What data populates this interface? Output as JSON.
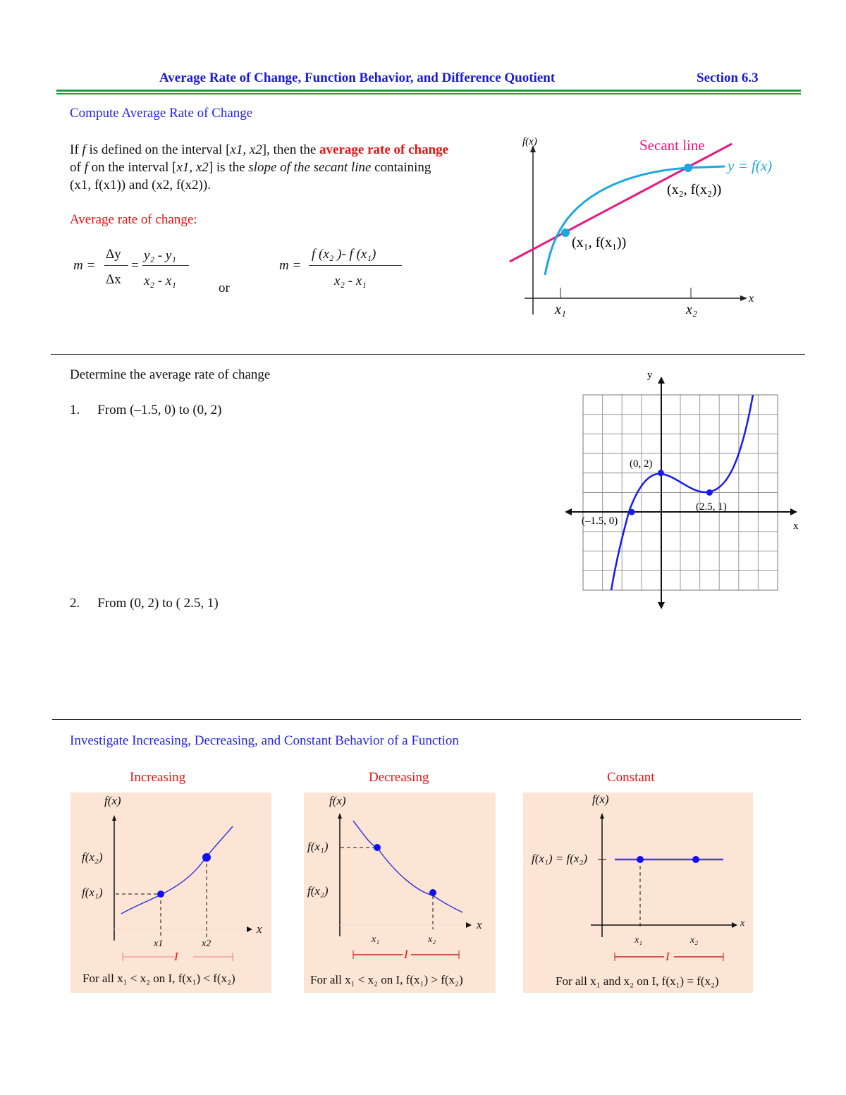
{
  "header": {
    "title": "Average Rate of Change, Function Behavior, and Difference Quotient",
    "section": "Section 6.3"
  },
  "compute": {
    "heading": "Compute Average Rate of Change",
    "para": {
      "p1": "If ",
      "f": "f",
      "p2": " is defined on the interval [",
      "x1": "x1",
      "c": ", ",
      "x2": "x2",
      "p3": "], then the ",
      "highlight": "average rate of change",
      "p4": "of ",
      "p5": " on the interval [",
      "p6": "] is the ",
      "slope": "slope of the secant line",
      "p7": " containing",
      "line3": "(x1, f(x1)) and (x2, f(x2))."
    },
    "formula_label": "Average rate of change:",
    "formula1": {
      "m": "m =",
      "dy": "Δy",
      "dx": "Δx",
      "eq": "=",
      "num": "y₂ - y₁",
      "den": "x₂ - x₁"
    },
    "or": "or",
    "formula2": {
      "m": "m =",
      "num": "f (x₂ )- f (x₁)",
      "den": "x₂ - x₁"
    },
    "diagram": {
      "y_label": "f(x)",
      "x_label": "x",
      "secant_label": "Secant line",
      "curve_label": "y = f(x)",
      "p1_label": "(x₁, f(x₁))",
      "p2_label": "(x₂, f(x₂))",
      "tick1": "x₁",
      "tick2": "x₂",
      "secant_color": "#e5197e",
      "curve_color": "#1ba8e0"
    }
  },
  "determine": {
    "intro": "Determine the average rate of change",
    "problems": [
      {
        "num": "1.",
        "text": "From (–1.5, 0) to (0, 2)"
      },
      {
        "num": "2.",
        "text": "From (0, 2) to ( 2.5, 1)"
      }
    ],
    "graph": {
      "x_label": "x",
      "y_label": "y",
      "x_range": [
        -4,
        6
      ],
      "y_range": [
        -4,
        6
      ],
      "grid": true,
      "curve_color": "#1a1af0",
      "points": [
        {
          "label": "(–1.5, 0)",
          "x": -1.5,
          "y": 0
        },
        {
          "label": "(0, 2)",
          "x": 0,
          "y": 2
        },
        {
          "label": "(2.5, 1)",
          "x": 2.5,
          "y": 1
        }
      ]
    }
  },
  "behavior": {
    "heading": "Investigate Increasing, Decreasing, and Constant Behavior of a Function",
    "panels": [
      {
        "title": "Increasing",
        "y_axis": "f(x)",
        "fx2": "f(x₂)",
        "fx1": "f(x₁)",
        "x": "x",
        "x1": "x1",
        "x2": "x2",
        "I": "I",
        "caption": "For all x₁ < x₂ on I, f(x₁) < f(x₂)"
      },
      {
        "title": "Decreasing",
        "y_axis": "f(x)",
        "fx1": "f(x₁)",
        "fx2": "f(x₂)",
        "x": "x",
        "x1": "x₁",
        "x2": "x₂",
        "I": "I",
        "caption": "For all x₁ < x₂ on I, f(x₁) > f(x₂)"
      },
      {
        "title": "Constant",
        "y_axis": "f(x)",
        "fx": "f(x₁) = f(x₂)",
        "x": "x",
        "x1": "x₁",
        "x2": "x₂",
        "I": "I",
        "caption": "For all x₁ and x₂ on I, f(x₁) = f(x₂)"
      }
    ]
  }
}
